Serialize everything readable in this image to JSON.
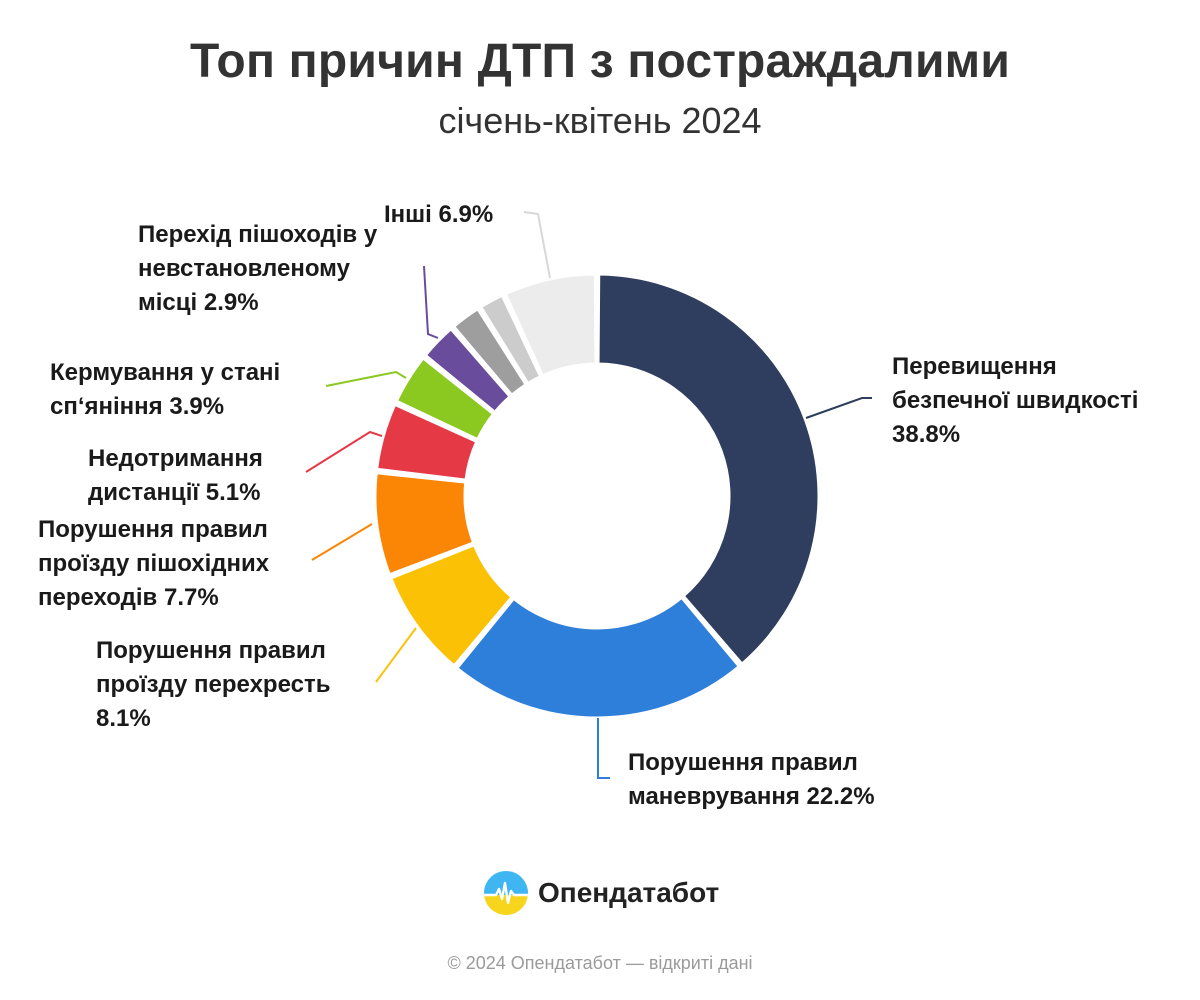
{
  "header": {
    "title": "Топ причин ДТП з постраждалими",
    "subtitle": "січень-квітень 2024"
  },
  "chart_data": {
    "type": "pie",
    "variant": "donut",
    "title": "Топ причин ДТП з постраждалими",
    "subtitle": "січень-квітень 2024",
    "unit": "%",
    "slices": [
      {
        "name": "Перевищення\nбезпечної швидкості",
        "value": 38.8,
        "value_label": "38.8%",
        "color": "#2f3e5e"
      },
      {
        "name": "Порушення правил\nманеврування",
        "value": 22.2,
        "value_label": "22.2%",
        "color": "#2e7fd9"
      },
      {
        "name": "Порушення правил\nпроїзду перехресть",
        "value": 8.1,
        "value_label": "8.1%",
        "color": "#fbc105"
      },
      {
        "name": "Порушення правил\nпроїзду пішохідних\nпереходів",
        "value": 7.7,
        "value_label": "7.7%",
        "color": "#fb8505"
      },
      {
        "name": "Недотримання\nдистанції",
        "value": 5.1,
        "value_label": "5.1%",
        "color": "#e63946"
      },
      {
        "name": "Кермування у стані\nсп‘яніння",
        "value": 3.9,
        "value_label": "3.9%",
        "color": "#8bc820"
      },
      {
        "name": "Перехід пішоходів у\nневстановленому\nмісці",
        "value": 2.9,
        "value_label": "2.9%",
        "color": "#6a4c9c"
      },
      {
        "name": "",
        "value": 2.4,
        "value_label": "",
        "color": "#9e9e9e"
      },
      {
        "name": "",
        "value": 2.0,
        "value_label": "",
        "color": "#cccccc"
      },
      {
        "name": "Інші",
        "value": 6.9,
        "value_label": "6.9%",
        "color": "#ececec"
      }
    ]
  },
  "brand": {
    "name": "Опендатабот",
    "icon": "opendatabot-logo-icon"
  },
  "footer": {
    "copyright": "© 2024 Опендатабот — відкриті дані"
  }
}
